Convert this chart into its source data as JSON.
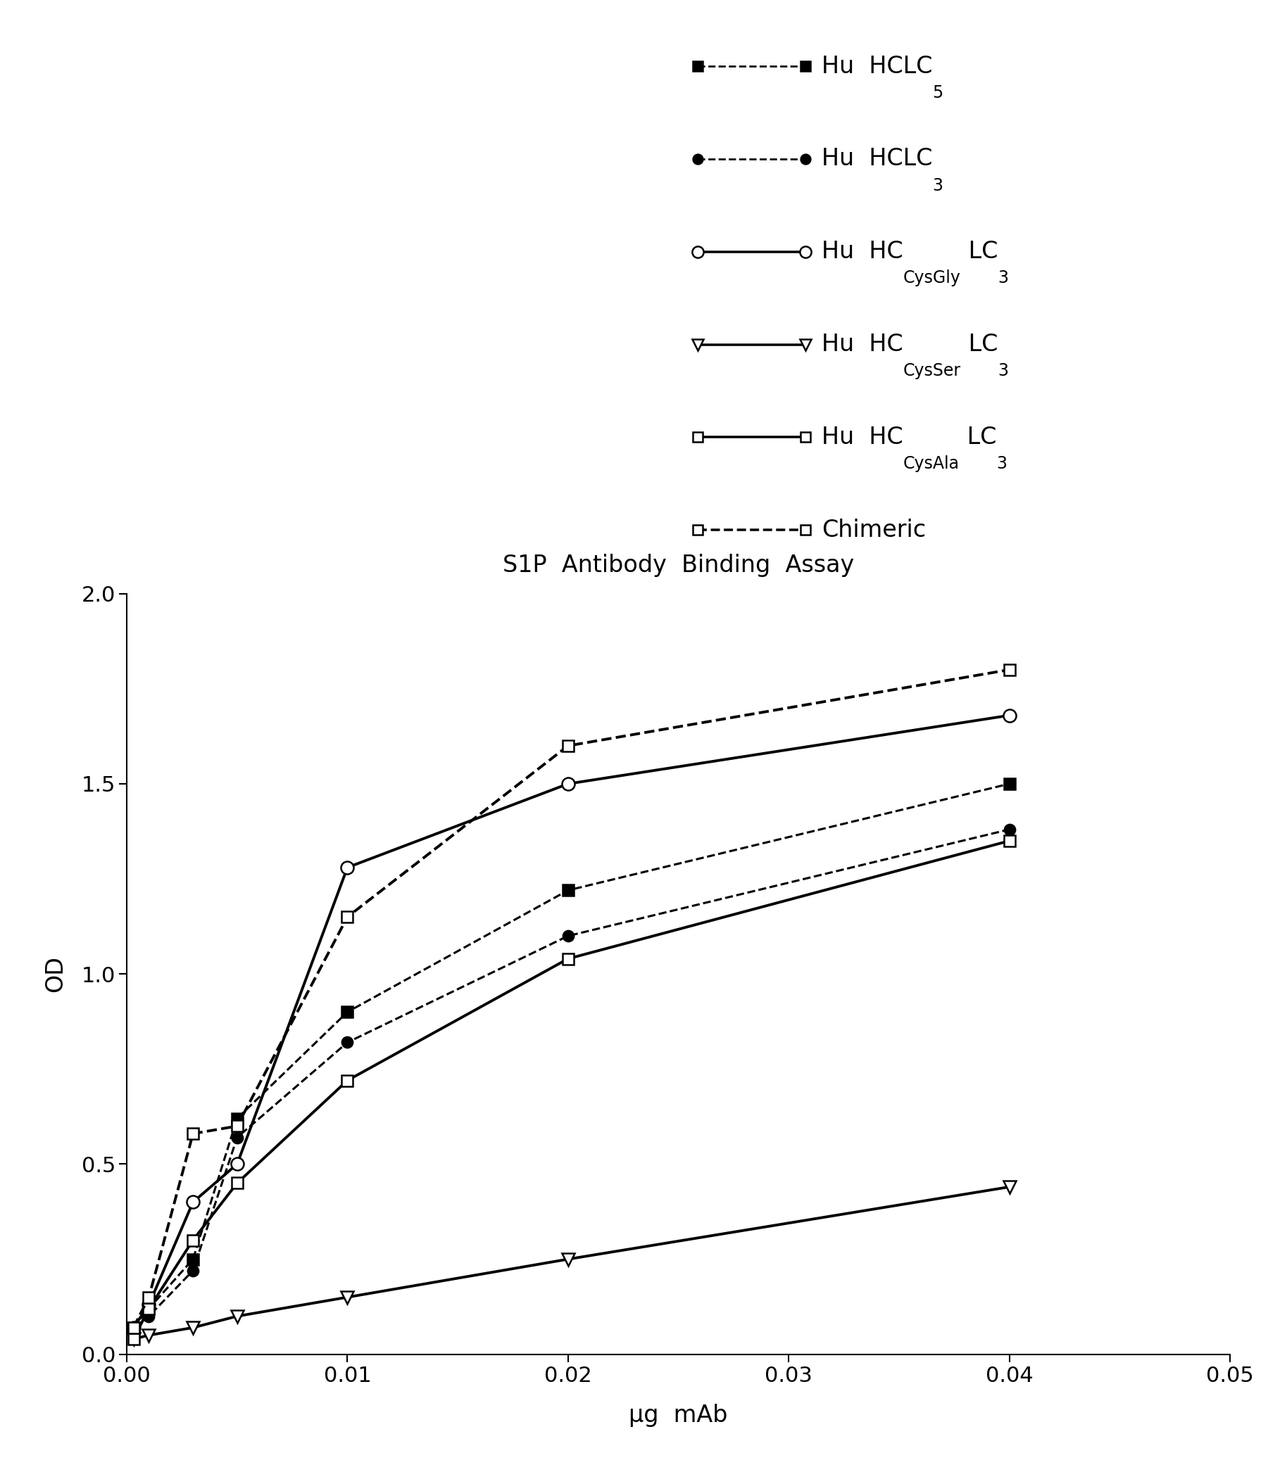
{
  "title": "S1P  Antibody  Binding  Assay",
  "xlabel": "μg  mAb",
  "ylabel": "OD",
  "xlim": [
    0,
    0.05
  ],
  "ylim": [
    0,
    2.0
  ],
  "xticks": [
    0.0,
    0.01,
    0.02,
    0.03,
    0.04,
    0.05
  ],
  "yticks": [
    0.0,
    0.5,
    1.0,
    1.5,
    2.0
  ],
  "x_vals": [
    0.0003,
    0.001,
    0.003,
    0.005,
    0.01,
    0.02,
    0.04
  ],
  "series": [
    {
      "name": "Hu HCLC5",
      "y": [
        0.07,
        0.12,
        0.25,
        0.62,
        0.9,
        1.22,
        1.5
      ],
      "linestyle": "--",
      "marker": "s",
      "filled": true,
      "lw": 2.2,
      "ms": 11
    },
    {
      "name": "Hu HCLC3",
      "y": [
        0.07,
        0.1,
        0.22,
        0.57,
        0.82,
        1.1,
        1.38
      ],
      "linestyle": "--",
      "marker": "o",
      "filled": true,
      "lw": 2.2,
      "ms": 11
    },
    {
      "name": "Hu HCCysGly LC3",
      "y": [
        0.07,
        0.13,
        0.4,
        0.5,
        1.28,
        1.5,
        1.68
      ],
      "linestyle": "-",
      "marker": "o",
      "filled": false,
      "lw": 2.8,
      "ms": 13
    },
    {
      "name": "Hu HCCysSer LC3",
      "y": [
        0.04,
        0.05,
        0.07,
        0.1,
        0.15,
        0.25,
        0.44
      ],
      "linestyle": "-",
      "marker": "v",
      "filled": false,
      "lw": 2.8,
      "ms": 13
    },
    {
      "name": "Hu HCCysAla LC3",
      "y": [
        0.04,
        0.12,
        0.3,
        0.45,
        0.72,
        1.04,
        1.35
      ],
      "linestyle": "-",
      "marker": "s",
      "filled": false,
      "lw": 2.8,
      "ms": 11
    },
    {
      "name": "Chimeric",
      "y": [
        0.07,
        0.15,
        0.58,
        0.6,
        1.15,
        1.6,
        1.8
      ],
      "linestyle": "--",
      "marker": "s",
      "filled": false,
      "lw": 2.8,
      "ms": 11
    }
  ],
  "background_color": "white",
  "title_fontsize": 24,
  "label_fontsize": 24,
  "tick_fontsize": 22,
  "legend_main_fontsize": 24,
  "legend_sub_fontsize": 17
}
